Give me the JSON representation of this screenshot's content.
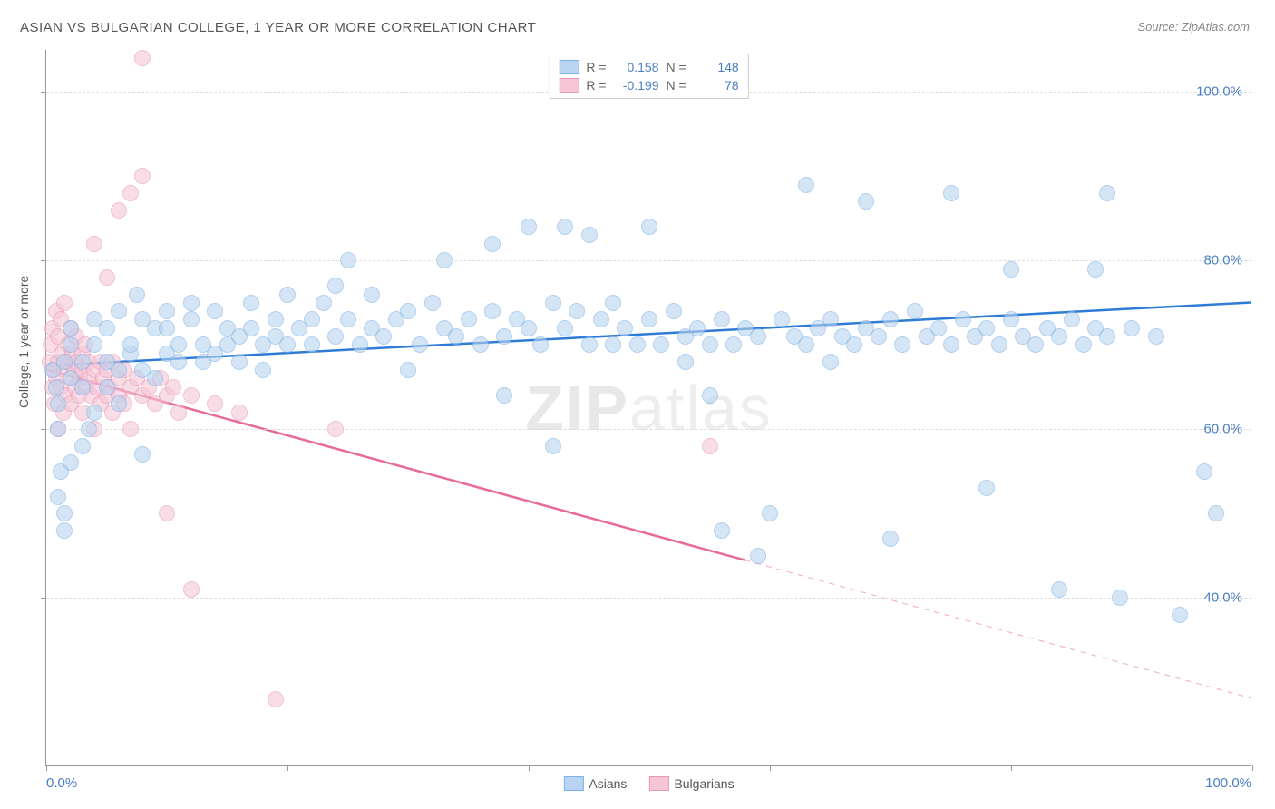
{
  "title": "ASIAN VS BULGARIAN COLLEGE, 1 YEAR OR MORE CORRELATION CHART",
  "source": "Source: ZipAtlas.com",
  "ylabel": "College, 1 year or more",
  "watermark_a": "ZIP",
  "watermark_b": "atlas",
  "chart": {
    "type": "scatter",
    "xlim": [
      0,
      100
    ],
    "ylim": [
      20,
      105
    ],
    "xticks": [
      0,
      20,
      40,
      60,
      80,
      100
    ],
    "yticks": [
      40,
      60,
      80,
      100
    ],
    "ytick_labels": [
      "40.0%",
      "60.0%",
      "80.0%",
      "100.0%"
    ],
    "x_min_label": "0.0%",
    "x_max_label": "100.0%",
    "grid_color": "#dddddd",
    "axis_color": "#999999",
    "background_color": "#ffffff",
    "marker_radius": 9,
    "series": [
      {
        "name": "Asians",
        "fill": "#b8d4f0",
        "stroke": "#7fb3e6",
        "fill_opacity": 0.6,
        "R": "0.158",
        "N": "148",
        "trend": {
          "y_at_x0": 67.5,
          "y_at_x100": 75.0,
          "solid_until_x": 100,
          "color": "#2e7cd6",
          "width": 2.5
        },
        "points": [
          [
            0.5,
            67
          ],
          [
            0.8,
            65
          ],
          [
            1,
            60
          ],
          [
            1,
            52
          ],
          [
            1.2,
            55
          ],
          [
            1.5,
            50
          ],
          [
            1.5,
            48
          ],
          [
            1,
            63
          ],
          [
            2,
            70
          ],
          [
            2,
            66
          ],
          [
            2,
            72
          ],
          [
            1.5,
            68
          ],
          [
            3,
            65
          ],
          [
            3,
            58
          ],
          [
            3.5,
            60
          ],
          [
            3,
            68
          ],
          [
            2,
            56
          ],
          [
            4,
            62
          ],
          [
            4,
            70
          ],
          [
            4,
            73
          ],
          [
            5,
            68
          ],
          [
            5,
            65
          ],
          [
            5,
            72
          ],
          [
            6,
            67
          ],
          [
            6,
            63
          ],
          [
            6,
            74
          ],
          [
            7,
            69
          ],
          [
            7,
            70
          ],
          [
            7.5,
            76
          ],
          [
            8,
            73
          ],
          [
            8,
            67
          ],
          [
            8,
            57
          ],
          [
            9,
            72
          ],
          [
            9,
            66
          ],
          [
            10,
            69
          ],
          [
            10,
            74
          ],
          [
            10,
            72
          ],
          [
            11,
            70
          ],
          [
            11,
            68
          ],
          [
            12,
            73
          ],
          [
            12,
            75
          ],
          [
            13,
            70
          ],
          [
            13,
            68
          ],
          [
            14,
            69
          ],
          [
            14,
            74
          ],
          [
            15,
            70
          ],
          [
            15,
            72
          ],
          [
            16,
            68
          ],
          [
            16,
            71
          ],
          [
            17,
            72
          ],
          [
            17,
            75
          ],
          [
            18,
            70
          ],
          [
            18,
            67
          ],
          [
            19,
            73
          ],
          [
            19,
            71
          ],
          [
            20,
            70
          ],
          [
            20,
            76
          ],
          [
            21,
            72
          ],
          [
            22,
            70
          ],
          [
            22,
            73
          ],
          [
            23,
            75
          ],
          [
            24,
            71
          ],
          [
            24,
            77
          ],
          [
            25,
            73
          ],
          [
            25,
            80
          ],
          [
            26,
            70
          ],
          [
            27,
            72
          ],
          [
            27,
            76
          ],
          [
            28,
            71
          ],
          [
            29,
            73
          ],
          [
            30,
            74
          ],
          [
            30,
            67
          ],
          [
            31,
            70
          ],
          [
            32,
            75
          ],
          [
            33,
            72
          ],
          [
            33,
            80
          ],
          [
            34,
            71
          ],
          [
            35,
            73
          ],
          [
            36,
            70
          ],
          [
            37,
            74
          ],
          [
            37,
            82
          ],
          [
            38,
            71
          ],
          [
            38,
            64
          ],
          [
            39,
            73
          ],
          [
            40,
            72
          ],
          [
            40,
            84
          ],
          [
            41,
            70
          ],
          [
            42,
            75
          ],
          [
            42,
            58
          ],
          [
            43,
            72
          ],
          [
            43,
            84
          ],
          [
            44,
            74
          ],
          [
            45,
            70
          ],
          [
            45,
            83
          ],
          [
            46,
            73
          ],
          [
            47,
            70
          ],
          [
            47,
            75
          ],
          [
            48,
            72
          ],
          [
            49,
            70
          ],
          [
            50,
            73
          ],
          [
            50,
            84
          ],
          [
            51,
            70
          ],
          [
            52,
            74
          ],
          [
            53,
            71
          ],
          [
            53,
            68
          ],
          [
            54,
            72
          ],
          [
            55,
            70
          ],
          [
            55,
            64
          ],
          [
            56,
            73
          ],
          [
            56,
            48
          ],
          [
            57,
            70
          ],
          [
            58,
            72
          ],
          [
            59,
            71
          ],
          [
            59,
            45
          ],
          [
            60,
            50
          ],
          [
            61,
            73
          ],
          [
            62,
            71
          ],
          [
            63,
            70
          ],
          [
            63,
            89
          ],
          [
            64,
            72
          ],
          [
            65,
            73
          ],
          [
            65,
            68
          ],
          [
            66,
            71
          ],
          [
            67,
            70
          ],
          [
            68,
            72
          ],
          [
            68,
            87
          ],
          [
            69,
            71
          ],
          [
            70,
            73
          ],
          [
            70,
            47
          ],
          [
            71,
            70
          ],
          [
            72,
            74
          ],
          [
            73,
            71
          ],
          [
            74,
            72
          ],
          [
            75,
            70
          ],
          [
            75,
            88
          ],
          [
            76,
            73
          ],
          [
            77,
            71
          ],
          [
            78,
            72
          ],
          [
            78,
            53
          ],
          [
            79,
            70
          ],
          [
            80,
            73
          ],
          [
            80,
            79
          ],
          [
            81,
            71
          ],
          [
            82,
            70
          ],
          [
            83,
            72
          ],
          [
            84,
            71
          ],
          [
            84,
            41
          ],
          [
            85,
            73
          ],
          [
            86,
            70
          ],
          [
            87,
            72
          ],
          [
            87,
            79
          ],
          [
            88,
            71
          ],
          [
            88,
            88
          ],
          [
            89,
            40
          ],
          [
            90,
            72
          ],
          [
            92,
            71
          ],
          [
            94,
            38
          ],
          [
            96,
            55
          ],
          [
            97,
            50
          ]
        ]
      },
      {
        "name": "Bulgarians",
        "fill": "#f5c6d6",
        "stroke": "#e89ab5",
        "fill_opacity": 0.6,
        "R": "-0.199",
        "N": "78",
        "trend": {
          "y_at_x0": 67.0,
          "y_at_x100": 28.0,
          "solid_until_x": 58,
          "color": "#e86a9a",
          "width": 2.5
        },
        "points": [
          [
            0.3,
            68
          ],
          [
            0.4,
            70
          ],
          [
            0.5,
            65
          ],
          [
            0.5,
            72
          ],
          [
            0.6,
            67
          ],
          [
            0.7,
            63
          ],
          [
            0.8,
            74
          ],
          [
            0.8,
            66
          ],
          [
            1,
            68
          ],
          [
            1,
            71
          ],
          [
            1,
            60
          ],
          [
            1.2,
            65
          ],
          [
            1.2,
            73
          ],
          [
            1.3,
            69
          ],
          [
            1.4,
            62
          ],
          [
            1.5,
            67
          ],
          [
            1.5,
            75
          ],
          [
            1.6,
            64
          ],
          [
            1.8,
            70
          ],
          [
            1.8,
            68
          ],
          [
            2,
            66
          ],
          [
            2,
            72
          ],
          [
            2,
            63
          ],
          [
            2.2,
            69
          ],
          [
            2.3,
            67
          ],
          [
            2.4,
            65
          ],
          [
            2.5,
            71
          ],
          [
            2.5,
            68
          ],
          [
            2.7,
            64
          ],
          [
            2.8,
            66
          ],
          [
            3,
            69
          ],
          [
            3,
            67
          ],
          [
            3,
            62
          ],
          [
            3.2,
            70
          ],
          [
            3.3,
            65
          ],
          [
            3.5,
            68
          ],
          [
            3.5,
            66
          ],
          [
            3.7,
            64
          ],
          [
            4,
            67
          ],
          [
            4,
            82
          ],
          [
            4,
            60
          ],
          [
            4.2,
            65
          ],
          [
            4.5,
            68
          ],
          [
            4.5,
            63
          ],
          [
            4.7,
            66
          ],
          [
            5,
            64
          ],
          [
            5,
            67
          ],
          [
            5,
            78
          ],
          [
            5.2,
            65
          ],
          [
            5.5,
            68
          ],
          [
            5.5,
            62
          ],
          [
            6,
            66
          ],
          [
            6,
            64
          ],
          [
            6,
            86
          ],
          [
            6.5,
            67
          ],
          [
            6.5,
            63
          ],
          [
            7,
            65
          ],
          [
            7,
            88
          ],
          [
            7,
            60
          ],
          [
            7.5,
            66
          ],
          [
            8,
            64
          ],
          [
            8,
            90
          ],
          [
            8,
            104
          ],
          [
            8.5,
            65
          ],
          [
            9,
            63
          ],
          [
            9.5,
            66
          ],
          [
            10,
            64
          ],
          [
            10,
            50
          ],
          [
            10.5,
            65
          ],
          [
            11,
            62
          ],
          [
            12,
            64
          ],
          [
            12,
            41
          ],
          [
            14,
            63
          ],
          [
            16,
            62
          ],
          [
            19,
            28
          ],
          [
            24,
            60
          ],
          [
            55,
            58
          ]
        ]
      }
    ],
    "bottom_legend": [
      "Asians",
      "Bulgarians"
    ]
  },
  "stats_legend": {
    "r_label": "R =",
    "n_label": "N ="
  }
}
